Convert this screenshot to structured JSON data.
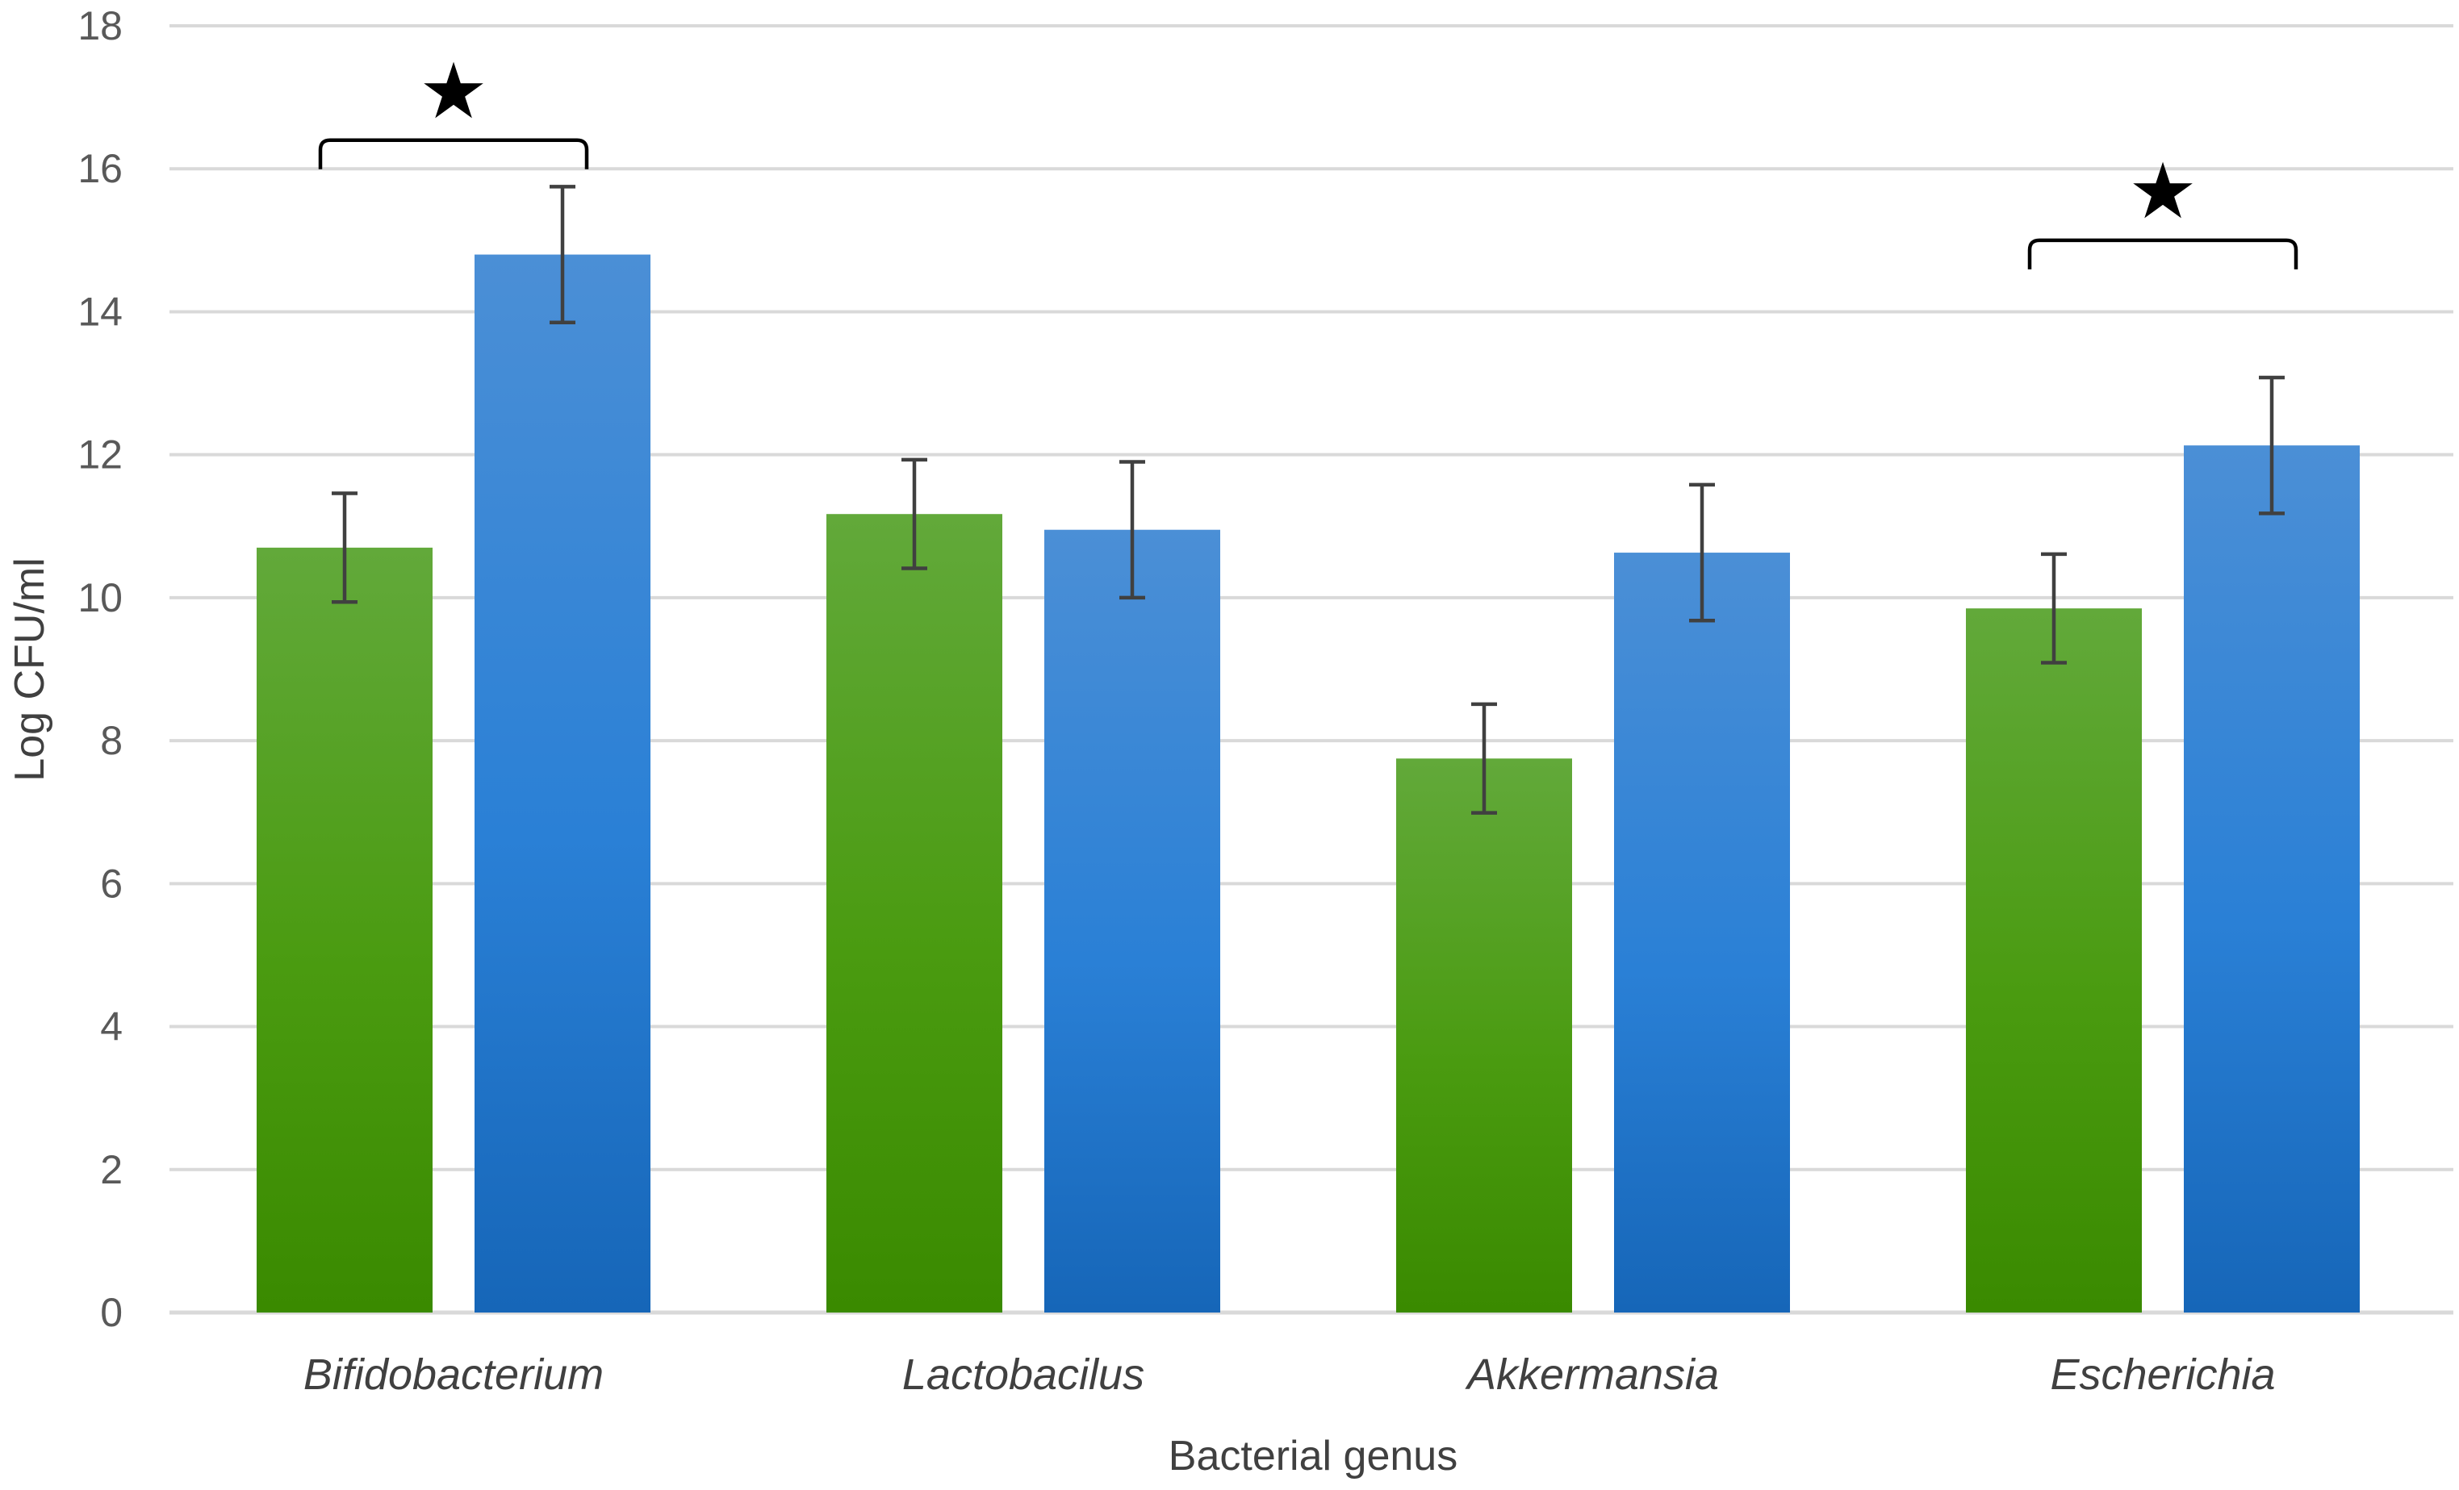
{
  "chart_data": {
    "type": "bar",
    "title": "",
    "xlabel": "Bacterial genus",
    "ylabel": "Log CFU/ml",
    "ylim": [
      0,
      18
    ],
    "yticks": [
      0,
      2,
      4,
      6,
      8,
      10,
      12,
      14,
      16,
      18
    ],
    "grid": true,
    "legend": "none",
    "categories": [
      "Bifidobacterium",
      "Lactobacilus",
      "Akkermansia",
      "Escherichia"
    ],
    "series": [
      {
        "name": "green",
        "color": "#4a9a16",
        "values": [
          10.7,
          11.17,
          7.75,
          9.85
        ],
        "error": [
          0.76,
          0.76,
          0.76,
          0.76
        ]
      },
      {
        "name": "blue",
        "color": "#2b7fd2",
        "values": [
          14.8,
          10.95,
          10.63,
          12.13
        ],
        "error": [
          0.95,
          0.95,
          0.95,
          0.95
        ]
      }
    ],
    "significance": [
      {
        "category": "Bifidobacterium",
        "marker": "★",
        "bracket_y": 16.4,
        "star_y": 17.1
      },
      {
        "category": "Escherichia",
        "marker": "★",
        "bracket_y": 15.0,
        "star_y": 15.7
      }
    ]
  }
}
